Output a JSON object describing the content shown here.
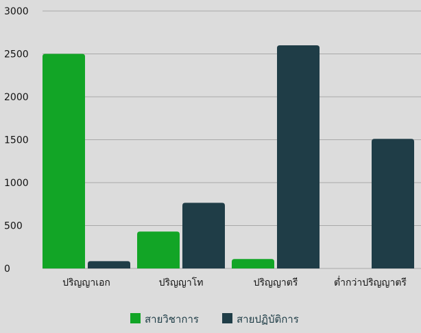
{
  "chart_data": {
    "type": "bar",
    "categories": [
      "ปริญญาเอก",
      "ปริญญาโท",
      "ปริญญาตรี",
      "ต่ำกว่าปริญญาตรี"
    ],
    "series": [
      {
        "name": "สายวิชาการ",
        "color": "#12a526",
        "values": [
          2500,
          430,
          110,
          0
        ]
      },
      {
        "name": "สายปฏิบัติการ",
        "color": "#1f3d47",
        "values": [
          85,
          765,
          2600,
          1510
        ]
      }
    ],
    "yticks": [
      0,
      500,
      1000,
      1500,
      2000,
      2500,
      3000
    ],
    "ylim": [
      0,
      3000
    ],
    "grid": true,
    "legend": "bottom-center"
  }
}
